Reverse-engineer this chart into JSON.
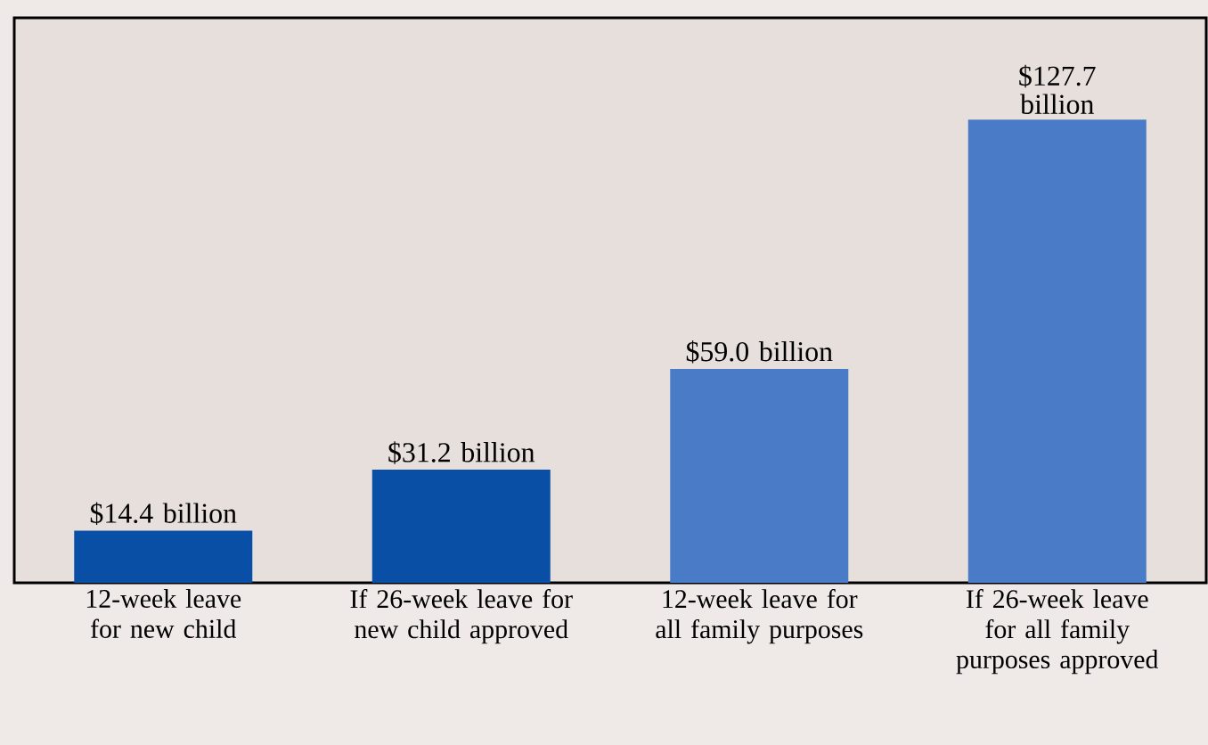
{
  "chart_data": {
    "type": "bar",
    "categories": [
      "12-week leave for new child",
      "If 26-week leave for new child approved",
      "12-week leave for all family purposes",
      "If 26-week leave for all family purposes approved"
    ],
    "values": [
      14.4,
      31.2,
      59.0,
      127.7
    ],
    "value_labels": [
      "$14.4 billion",
      "$31.2 billion",
      "$59.0 billion",
      "$127.7 billion"
    ],
    "colors": [
      "#0a4fa6",
      "#0a4fa6",
      "#4a7bc6",
      "#4a7bc6"
    ]
  }
}
